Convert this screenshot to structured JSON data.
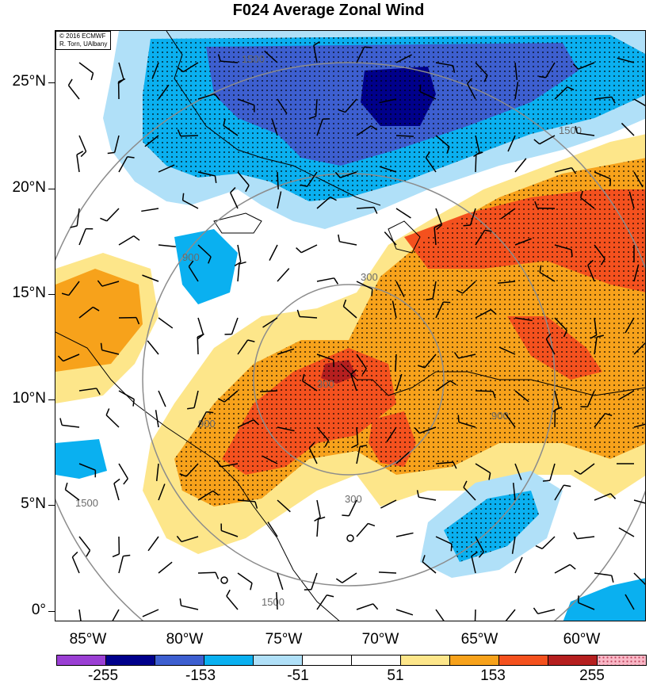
{
  "title": "F024 Average Zonal Wind",
  "credit": {
    "line1": "© 2016 ECMWF",
    "line2": "R. Torn, UAlbany"
  },
  "lat_labels": [
    "25°N",
    "20°N",
    "15°N",
    "10°N",
    "5°N",
    "0°"
  ],
  "lon_labels": [
    "85°W",
    "80°W",
    "75°W",
    "70°W",
    "65°W",
    "60°W"
  ],
  "range_rings": [
    "1500",
    "900",
    "300",
    "300",
    "900",
    "1500",
    "1500",
    "900",
    "300",
    "1500"
  ],
  "colorbar": {
    "colors": [
      "#9b3fd4",
      "#00008b",
      "#3d5fd0",
      "#0ab0f0",
      "#b0e0f8",
      "#ffffff",
      "#ffffff",
      "#fde68a",
      "#f7a21b",
      "#f4511e",
      "#b51f1f",
      "#f9b7c6"
    ],
    "labels": [
      "-255",
      "-153",
      "-51",
      "51",
      "153",
      "255"
    ]
  }
}
